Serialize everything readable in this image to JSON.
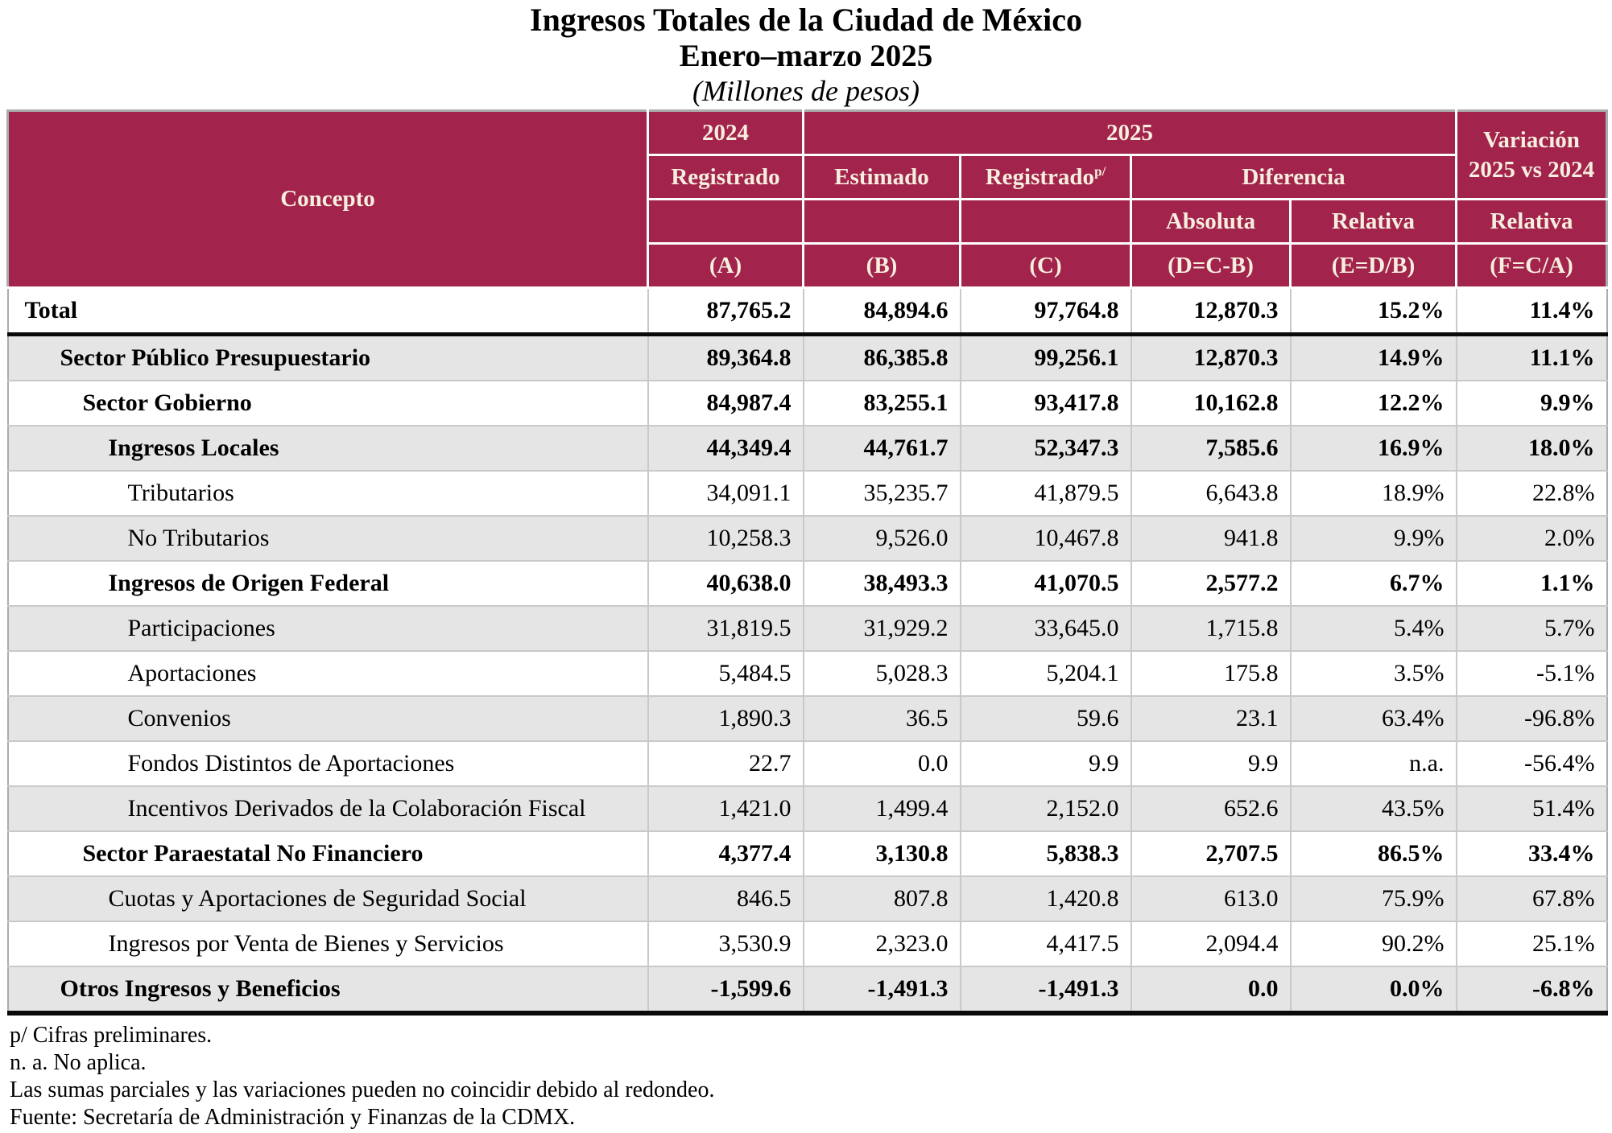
{
  "title": {
    "line1": "Ingresos Totales de la Ciudad de México",
    "line2": "Enero–marzo 2025",
    "line3": "(Millones de pesos)"
  },
  "table": {
    "header": {
      "concepto": "Concepto",
      "year_2024": "2024",
      "year_2025": "2025",
      "variacion": "Variación 2025 vs 2024",
      "registrado_2024": "Registrado",
      "estimado": "Estimado",
      "registrado_2025": "Registrado",
      "registrado_2025_sup": "p/",
      "diferencia": "Diferencia",
      "absoluta": "Absoluta",
      "relativa_diferencia": "Relativa",
      "relativa_variacion": "Relativa",
      "formula_a": "(A)",
      "formula_b": "(B)",
      "formula_c": "(C)",
      "formula_d": "(D=C-B)",
      "formula_e": "(E=D/B)",
      "formula_f": "(F=C/A)"
    },
    "rows": [
      {
        "concepto": "Total",
        "indent": 0,
        "bold": true,
        "shaded": false,
        "values": [
          "87,765.2",
          "84,894.6",
          "97,764.8",
          "12,870.3",
          "15.2%",
          "11.4%"
        ]
      },
      {
        "concepto": "Sector Público Presupuestario",
        "indent": 1,
        "bold": true,
        "shaded": true,
        "values": [
          "89,364.8",
          "86,385.8",
          "99,256.1",
          "12,870.3",
          "14.9%",
          "11.1%"
        ]
      },
      {
        "concepto": "Sector Gobierno",
        "indent": 2,
        "bold": true,
        "shaded": false,
        "values": [
          "84,987.4",
          "83,255.1",
          "93,417.8",
          "10,162.8",
          "12.2%",
          "9.9%"
        ]
      },
      {
        "concepto": "Ingresos Locales",
        "indent": 3,
        "bold": true,
        "shaded": true,
        "values": [
          "44,349.4",
          "44,761.7",
          "52,347.3",
          "7,585.6",
          "16.9%",
          "18.0%"
        ]
      },
      {
        "concepto": "Tributarios",
        "indent": 4,
        "bold": false,
        "shaded": false,
        "values": [
          "34,091.1",
          "35,235.7",
          "41,879.5",
          "6,643.8",
          "18.9%",
          "22.8%"
        ]
      },
      {
        "concepto": "No Tributarios",
        "indent": 4,
        "bold": false,
        "shaded": true,
        "values": [
          "10,258.3",
          "9,526.0",
          "10,467.8",
          "941.8",
          "9.9%",
          "2.0%"
        ]
      },
      {
        "concepto": "Ingresos de Origen Federal",
        "indent": 3,
        "bold": true,
        "shaded": false,
        "values": [
          "40,638.0",
          "38,493.3",
          "41,070.5",
          "2,577.2",
          "6.7%",
          "1.1%"
        ]
      },
      {
        "concepto": "Participaciones",
        "indent": 4,
        "bold": false,
        "shaded": true,
        "values": [
          "31,819.5",
          "31,929.2",
          "33,645.0",
          "1,715.8",
          "5.4%",
          "5.7%"
        ]
      },
      {
        "concepto": "Aportaciones",
        "indent": 4,
        "bold": false,
        "shaded": false,
        "values": [
          "5,484.5",
          "5,028.3",
          "5,204.1",
          "175.8",
          "3.5%",
          "-5.1%"
        ]
      },
      {
        "concepto": "Convenios",
        "indent": 4,
        "bold": false,
        "shaded": true,
        "values": [
          "1,890.3",
          "36.5",
          "59.6",
          "23.1",
          "63.4%",
          "-96.8%"
        ]
      },
      {
        "concepto": "Fondos Distintos de Aportaciones",
        "indent": 4,
        "bold": false,
        "shaded": false,
        "values": [
          "22.7",
          "0.0",
          "9.9",
          "9.9",
          "n.a.",
          "-56.4%"
        ]
      },
      {
        "concepto": "Incentivos Derivados de la Colaboración Fiscal",
        "indent": 4,
        "bold": false,
        "shaded": true,
        "values": [
          "1,421.0",
          "1,499.4",
          "2,152.0",
          "652.6",
          "43.5%",
          "51.4%"
        ]
      },
      {
        "concepto": "Sector Paraestatal No Financiero",
        "indent": 2,
        "bold": true,
        "shaded": false,
        "values": [
          "4,377.4",
          "3,130.8",
          "5,838.3",
          "2,707.5",
          "86.5%",
          "33.4%"
        ]
      },
      {
        "concepto": "Cuotas y Aportaciones de Seguridad Social",
        "indent": 3,
        "bold": false,
        "shaded": true,
        "values": [
          "846.5",
          "807.8",
          "1,420.8",
          "613.0",
          "75.9%",
          "67.8%"
        ]
      },
      {
        "concepto": "Ingresos por Venta de Bienes y Servicios",
        "indent": 3,
        "bold": false,
        "shaded": false,
        "values": [
          "3,530.9",
          "2,323.0",
          "4,417.5",
          "2,094.4",
          "90.2%",
          "25.1%"
        ]
      },
      {
        "concepto": "Otros Ingresos y Beneficios",
        "indent": 1,
        "bold": true,
        "shaded": true,
        "values": [
          "-1,599.6",
          "-1,491.3",
          "-1,491.3",
          "0.0",
          "0.0%",
          "-6.8%"
        ]
      }
    ]
  },
  "footnotes": [
    "p/ Cifras preliminares.",
    "n. a. No aplica.",
    "Las sumas parciales y las variaciones pueden no coincidir debido al redondeo.",
    "Fuente: Secretaría de Administración y Finanzas de la CDMX."
  ],
  "colors": {
    "header_bg": "#A2234B",
    "header_text": "#F6EFDF",
    "shaded_row": "#E6E5E5",
    "grid_border": "#C9C9C9",
    "heavy_rule": "#0A0A0A"
  }
}
